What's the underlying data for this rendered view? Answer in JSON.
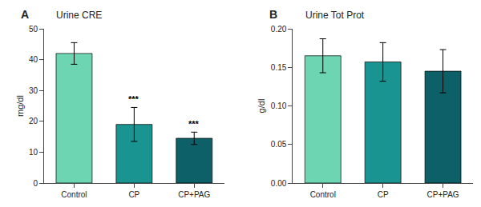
{
  "chart_data": [
    {
      "type": "bar",
      "title": "Urine CRE",
      "panel_label": "A",
      "categories": [
        "Control",
        "CP",
        "CP+PAG"
      ],
      "values": [
        42.0,
        19.0,
        14.5
      ],
      "errors": [
        3.5,
        5.5,
        2.0
      ],
      "colors": [
        "#6dd5b2",
        "#1a9490",
        "#0d6068"
      ],
      "ylabel": "mg/dl",
      "ylim": [
        0,
        50
      ],
      "yticks": [
        0,
        10,
        20,
        30,
        40,
        50
      ],
      "significance": [
        null,
        "***",
        "***"
      ],
      "grid": false
    },
    {
      "type": "bar",
      "title": "Urine Tot Prot",
      "panel_label": "B",
      "categories": [
        "Control",
        "CP",
        "CP+PAG"
      ],
      "values": [
        0.165,
        0.157,
        0.145
      ],
      "errors": [
        0.022,
        0.025,
        0.028
      ],
      "colors": [
        "#6dd5b2",
        "#1a9490",
        "#0d6068"
      ],
      "ylabel": "g/dl",
      "ylim": [
        0,
        0.2
      ],
      "yticks": [
        {
          "value": 0,
          "label": "0.00"
        },
        0.05,
        {
          "value": 0.1,
          "label": "0.10"
        },
        0.15,
        {
          "value": 0.2,
          "label": "0.20"
        }
      ],
      "grid": false
    }
  ]
}
